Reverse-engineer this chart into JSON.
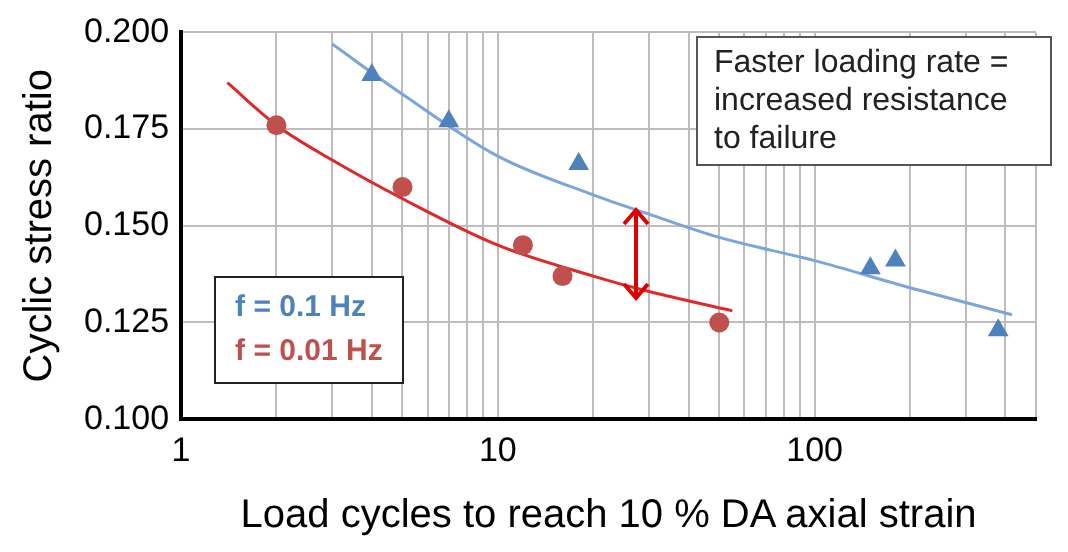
{
  "chart_data": {
    "type": "scatter",
    "xlabel": "Load cycles to reach 10 % DA axial strain",
    "ylabel": "Cyclic stress ratio",
    "log": "x",
    "xlim": [
      1,
      500
    ],
    "xticks": [
      1,
      {
        "value": 2,
        "label": null
      },
      {
        "value": 3,
        "label": null
      },
      {
        "value": 4,
        "label": null
      },
      {
        "value": 5,
        "label": null
      },
      {
        "value": 6,
        "label": null
      },
      {
        "value": 7,
        "label": null
      },
      {
        "value": 8,
        "label": null
      },
      {
        "value": 9,
        "label": null
      },
      10,
      {
        "value": 20,
        "label": null
      },
      {
        "value": 30,
        "label": null
      },
      {
        "value": 40,
        "label": null
      },
      {
        "value": 50,
        "label": null
      },
      {
        "value": 60,
        "label": null
      },
      {
        "value": 70,
        "label": null
      },
      {
        "value": 80,
        "label": null
      },
      {
        "value": 90,
        "label": null
      },
      100,
      {
        "value": 200,
        "label": null
      },
      {
        "value": 300,
        "label": null
      },
      {
        "value": 400,
        "label": null
      },
      {
        "value": 500,
        "label": null
      }
    ],
    "ylim": [
      0.1,
      0.2
    ],
    "yticks": [
      {
        "value": 0.1,
        "label": "0.100"
      },
      {
        "value": 0.125,
        "label": "0.125"
      },
      {
        "value": 0.15,
        "label": "0.150"
      },
      {
        "value": 0.175,
        "label": "0.175"
      },
      {
        "value": 0.2,
        "label": "0.200"
      }
    ],
    "grid": true,
    "legend": "bottom left",
    "annotations": [
      "Faster loading rate = increased resistance to failure"
    ],
    "series": [
      {
        "name": "f = 0.1 Hz",
        "type": "scatter",
        "marker": "triangle",
        "color": "#4f81bd",
        "x": [
          4,
          7,
          18,
          150,
          180,
          380
        ],
        "values": [
          0.189,
          0.177,
          0.166,
          0.139,
          0.141,
          0.123
        ]
      },
      {
        "name": "f = 0.01 Hz",
        "type": "scatter",
        "marker": "circle",
        "color": "#c0504d",
        "x": [
          2,
          5,
          12,
          16,
          50
        ],
        "values": [
          0.176,
          0.16,
          0.145,
          0.137,
          0.125
        ]
      },
      {
        "type": "line",
        "marker": "none",
        "color": "#7aa6dc",
        "x": [
          3,
          5,
          10,
          20,
          30,
          50,
          100,
          200,
          420
        ],
        "values": [
          0.197,
          0.184,
          0.168,
          0.158,
          0.153,
          0.147,
          0.141,
          0.134,
          0.127
        ]
      },
      {
        "type": "line",
        "marker": "none",
        "color": "#e02828",
        "x": [
          1.4,
          2,
          3,
          5,
          10,
          20,
          30,
          55
        ],
        "values": [
          0.187,
          0.176,
          0.167,
          0.157,
          0.145,
          0.137,
          0.133,
          0.128
        ]
      }
    ]
  }
}
